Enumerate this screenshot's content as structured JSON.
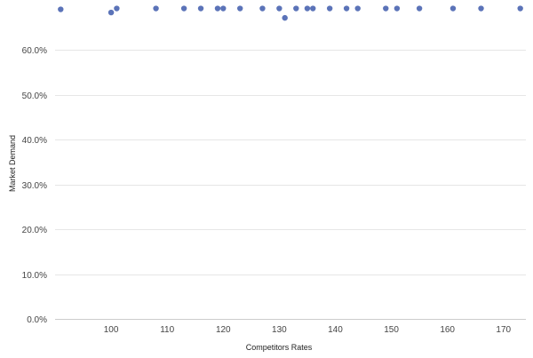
{
  "chart_data": {
    "type": "scatter",
    "xlabel": "Competitors Rates",
    "ylabel": "Market Demand",
    "xlim": [
      90,
      174
    ],
    "ylim": [
      0,
      0.7
    ],
    "x_ticks": [
      100,
      110,
      120,
      130,
      140,
      150,
      160,
      170
    ],
    "x_tick_labels": [
      "100",
      "110",
      "120",
      "130",
      "140",
      "150",
      "160",
      "170"
    ],
    "y_ticks": [
      0,
      0.1,
      0.2,
      0.3,
      0.4,
      0.5,
      0.6
    ],
    "y_tick_labels": [
      "0.0%",
      "10.0%",
      "20.0%",
      "30.0%",
      "40.0%",
      "50.0%",
      "60.0%"
    ],
    "grid": true,
    "marker_color": "#5b73b8",
    "grid_color": "#e6e6e6",
    "points": [
      {
        "x": 91,
        "y": 0.691
      },
      {
        "x": 100,
        "y": 0.684
      },
      {
        "x": 101,
        "y": 0.693
      },
      {
        "x": 108,
        "y": 0.693
      },
      {
        "x": 113,
        "y": 0.693
      },
      {
        "x": 116,
        "y": 0.693
      },
      {
        "x": 119,
        "y": 0.693
      },
      {
        "x": 120,
        "y": 0.693
      },
      {
        "x": 123,
        "y": 0.693
      },
      {
        "x": 127,
        "y": 0.693
      },
      {
        "x": 130,
        "y": 0.693
      },
      {
        "x": 131,
        "y": 0.672
      },
      {
        "x": 133,
        "y": 0.693
      },
      {
        "x": 135,
        "y": 0.693
      },
      {
        "x": 136,
        "y": 0.693
      },
      {
        "x": 139,
        "y": 0.693
      },
      {
        "x": 142,
        "y": 0.693
      },
      {
        "x": 144,
        "y": 0.693
      },
      {
        "x": 149,
        "y": 0.693
      },
      {
        "x": 151,
        "y": 0.693
      },
      {
        "x": 155,
        "y": 0.693
      },
      {
        "x": 161,
        "y": 0.693
      },
      {
        "x": 166,
        "y": 0.693
      },
      {
        "x": 173,
        "y": 0.693
      }
    ]
  }
}
